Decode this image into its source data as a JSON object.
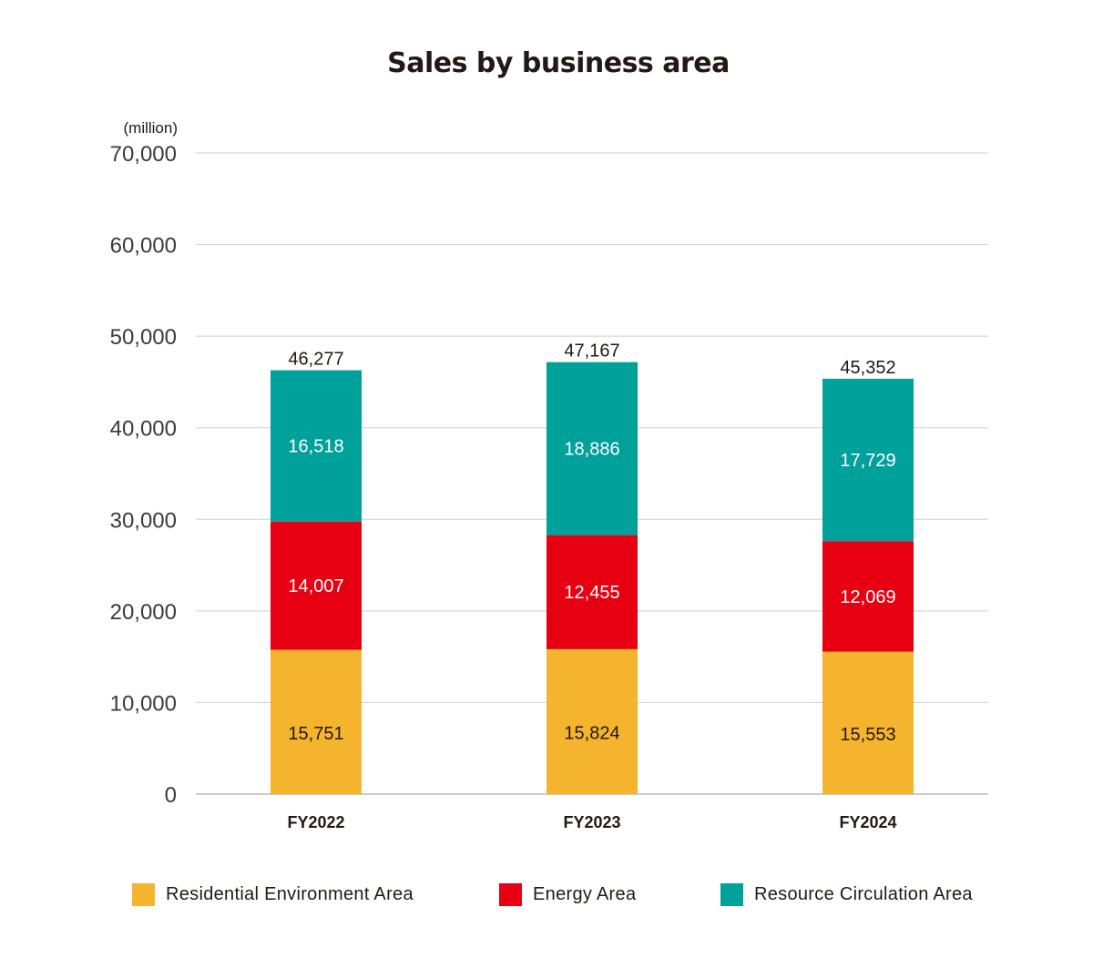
{
  "chart_data": {
    "type": "bar",
    "stacked": true,
    "title": "Sales by business area",
    "unit_label": "(million)",
    "categories": [
      "FY2022",
      "FY2023",
      "FY2024"
    ],
    "ylim": [
      0,
      70000
    ],
    "yticks": [
      0,
      10000,
      20000,
      30000,
      40000,
      50000,
      60000,
      70000
    ],
    "ytick_labels": [
      "0",
      "10,000",
      "20,000",
      "30,000",
      "40,000",
      "50,000",
      "60,000",
      "70,000"
    ],
    "grid": true,
    "legend_position": "bottom",
    "series": [
      {
        "name": "Residential Environment Area",
        "color": "#F5B42D",
        "label_color": "#231815",
        "values": [
          15751,
          15824,
          15553
        ],
        "labels": [
          "15,751",
          "15,824",
          "15,553"
        ]
      },
      {
        "name": "Energy Area",
        "color": "#E60012",
        "label_color": "#ffffff",
        "values": [
          14007,
          12455,
          12069
        ],
        "labels": [
          "14,007",
          "12,455",
          "12,069"
        ]
      },
      {
        "name": "Resource Circulation Area",
        "color": "#00A19A",
        "label_color": "#ffffff",
        "values": [
          16518,
          18886,
          17729
        ],
        "labels": [
          "16,518",
          "18,886",
          "17,729"
        ]
      }
    ],
    "totals": [
      46277,
      47167,
      45352
    ],
    "total_labels": [
      "46,277",
      "47,167",
      "45,352"
    ]
  }
}
